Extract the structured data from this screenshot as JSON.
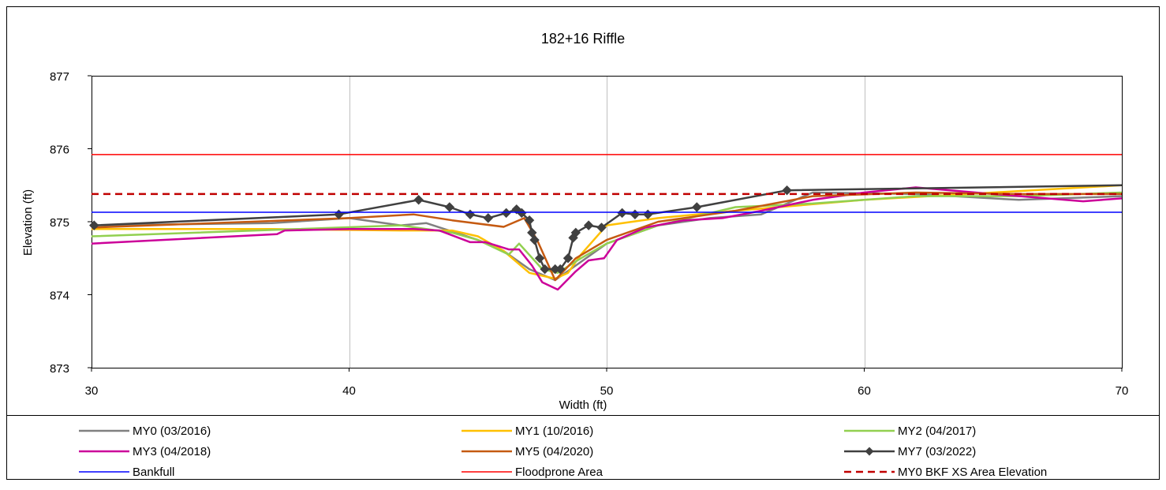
{
  "chart_data": {
    "type": "line",
    "title": "182+16 Riffle",
    "xlabel": "Width (ft)",
    "ylabel": "Elevation (ft)",
    "xlim": [
      30,
      70
    ],
    "ylim": [
      873,
      877
    ],
    "xticks": [
      "30",
      "40",
      "50",
      "60",
      "70"
    ],
    "yticks": [
      "873",
      "874",
      "875",
      "876",
      "877"
    ],
    "grid": "vertical",
    "legend_position": "bottom",
    "series": [
      {
        "name": "MY0 (03/2016)",
        "color": "#808080",
        "width": 2.5,
        "markers": false,
        "dash": false,
        "x": [
          30,
          37,
          40,
          42,
          43,
          45,
          46,
          47,
          48,
          49,
          50,
          52,
          54,
          56,
          58,
          62,
          66,
          70
        ],
        "y": [
          874.95,
          874.98,
          875.05,
          874.95,
          874.98,
          874.75,
          874.6,
          874.35,
          874.2,
          874.45,
          874.7,
          874.95,
          875.05,
          875.1,
          875.4,
          875.38,
          875.3,
          875.35
        ]
      },
      {
        "name": "MY1 (10/2016)",
        "color": "#FFC000",
        "width": 2.5,
        "markers": false,
        "dash": false,
        "x": [
          30,
          37,
          42,
          44,
          45,
          46,
          47,
          48,
          48.5,
          49,
          50,
          52,
          55,
          60,
          65,
          70
        ],
        "y": [
          874.9,
          874.9,
          874.88,
          874.88,
          874.8,
          874.6,
          874.3,
          874.22,
          874.3,
          874.55,
          874.95,
          875.05,
          875.15,
          875.3,
          875.4,
          875.5
        ]
      },
      {
        "name": "MY2 (04/2017)",
        "color": "#92D050",
        "width": 2.5,
        "markers": false,
        "dash": false,
        "x": [
          30,
          38,
          42,
          44,
          45,
          46.2,
          46.6,
          47.5,
          48.1,
          49,
          50,
          52,
          55,
          58,
          62,
          66,
          70
        ],
        "y": [
          874.8,
          874.9,
          874.95,
          874.85,
          874.75,
          874.55,
          874.7,
          874.35,
          874.3,
          874.5,
          874.7,
          874.95,
          875.2,
          875.25,
          875.35,
          875.35,
          875.4
        ]
      },
      {
        "name": "MY3 (04/2018)",
        "color": "#CC0099",
        "width": 2.5,
        "markers": false,
        "dash": false,
        "x": [
          30,
          37.2,
          37.5,
          40,
          42.5,
          43.5,
          44.7,
          45.3,
          46.2,
          46.6,
          47.1,
          47.5,
          48.1,
          48.8,
          49.3,
          49.9,
          50.4,
          51.5,
          53,
          54.5,
          56,
          58,
          60,
          62,
          65,
          68.5,
          70
        ],
        "y": [
          874.7,
          874.83,
          874.88,
          874.9,
          874.9,
          874.88,
          874.72,
          874.72,
          874.62,
          874.62,
          874.4,
          874.17,
          874.07,
          874.32,
          874.47,
          874.5,
          874.75,
          874.92,
          875.02,
          875.05,
          875.15,
          875.3,
          875.4,
          875.47,
          875.38,
          875.28,
          875.32
        ]
      },
      {
        "name": "MY5 (04/2020)",
        "color": "#C55A11",
        "width": 2.5,
        "markers": false,
        "dash": false,
        "x": [
          30,
          40,
          42.5,
          44,
          46,
          46.8,
          47.3,
          48,
          48.8,
          50,
          52,
          55,
          58,
          62,
          66,
          70
        ],
        "y": [
          874.92,
          875.05,
          875.1,
          875.02,
          874.93,
          875.05,
          874.75,
          874.2,
          874.5,
          874.75,
          875.0,
          875.15,
          875.35,
          875.4,
          875.38,
          875.38
        ]
      },
      {
        "name": "MY7 (03/2022)",
        "color": "#404040",
        "width": 2.5,
        "markers": true,
        "dash": false,
        "x": [
          30.1,
          39.6,
          42.7,
          43.9,
          44.7,
          45.4,
          46.1,
          46.5,
          46.7,
          47.0,
          47.1,
          47.2,
          47.4,
          47.6,
          48.0,
          48.2,
          48.5,
          48.7,
          48.8,
          49.3,
          49.8,
          50.6,
          51.1,
          51.6,
          53.5,
          57.0,
          70
        ],
        "y": [
          874.95,
          875.1,
          875.3,
          875.2,
          875.1,
          875.05,
          875.12,
          875.17,
          875.12,
          875.02,
          874.85,
          874.75,
          874.5,
          874.35,
          874.35,
          874.35,
          874.5,
          874.78,
          874.85,
          874.95,
          874.92,
          875.12,
          875.1,
          875.1,
          875.2,
          875.43,
          875.5
        ]
      },
      {
        "name": "Bankfull",
        "color": "#0000FF",
        "width": 1.5,
        "markers": false,
        "dash": false,
        "x": [
          30,
          70
        ],
        "y": [
          875.13,
          875.13
        ]
      },
      {
        "name": "Floodprone Area",
        "color": "#FF0000",
        "width": 1.5,
        "markers": false,
        "dash": false,
        "x": [
          30,
          70
        ],
        "y": [
          875.92,
          875.92
        ]
      },
      {
        "name": "MY0 BKF XS Area Elevation",
        "color": "#C00000",
        "width": 2.5,
        "markers": false,
        "dash": true,
        "x": [
          30,
          70
        ],
        "y": [
          875.38,
          875.38
        ]
      }
    ]
  }
}
